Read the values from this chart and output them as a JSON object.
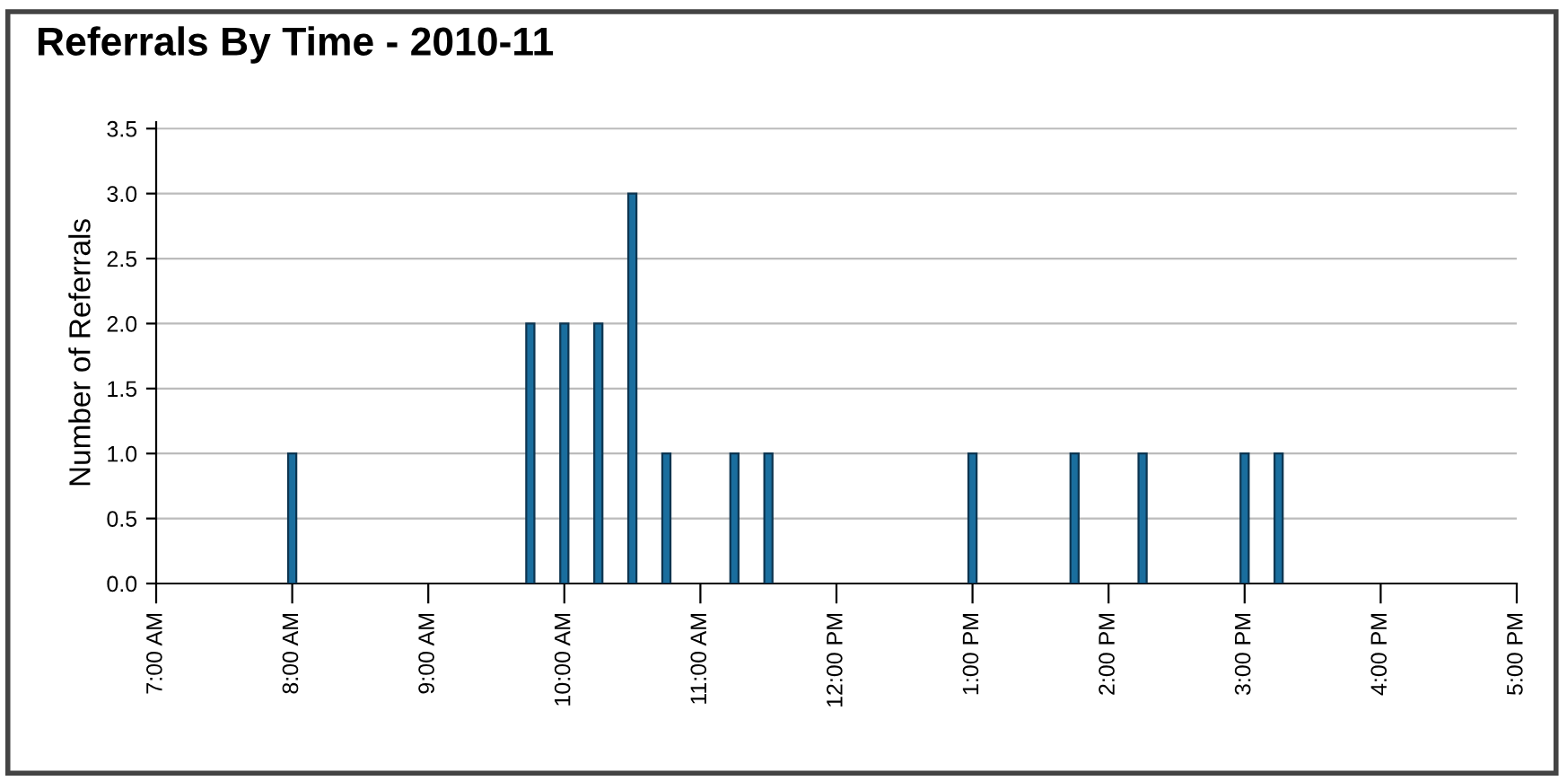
{
  "chart_data": {
    "type": "bar",
    "title": "Referrals By Time - 2010-11",
    "ylabel": "Number of Referrals",
    "x": [
      8.0,
      9.75,
      10.0,
      10.25,
      10.5,
      10.75,
      11.25,
      11.5,
      13.0,
      13.75,
      14.25,
      15.0,
      15.25
    ],
    "values": [
      1,
      2,
      2,
      2,
      3,
      1,
      1,
      1,
      1,
      1,
      1,
      1,
      1
    ],
    "color": "#1a6e9e",
    "xlim": [
      7,
      17
    ],
    "xticks": [
      {
        "value": 7,
        "label": "7:00 AM"
      },
      {
        "value": 8,
        "label": "8:00 AM"
      },
      {
        "value": 9,
        "label": "9:00 AM"
      },
      {
        "value": 10,
        "label": "10:00 AM"
      },
      {
        "value": 11,
        "label": "11:00 AM"
      },
      {
        "value": 12,
        "label": "12:00 PM"
      },
      {
        "value": 13,
        "label": "1:00 PM"
      },
      {
        "value": 14,
        "label": "2:00 PM"
      },
      {
        "value": 15,
        "label": "3:00 PM"
      },
      {
        "value": 16,
        "label": "4:00 PM"
      },
      {
        "value": 17,
        "label": "5:00 PM"
      }
    ],
    "ylim": [
      0,
      3.55
    ],
    "yticks": [
      {
        "value": 0,
        "label": "0.0"
      },
      {
        "value": 0.5,
        "label": "0.5"
      },
      {
        "value": 1,
        "label": "1.0"
      },
      {
        "value": 1.5,
        "label": "1.5"
      },
      {
        "value": 2,
        "label": "2.0"
      },
      {
        "value": 2.5,
        "label": "2.5"
      },
      {
        "value": 3,
        "label": "3.0"
      },
      {
        "value": 3.5,
        "label": "3.5"
      }
    ],
    "grid": "y"
  }
}
